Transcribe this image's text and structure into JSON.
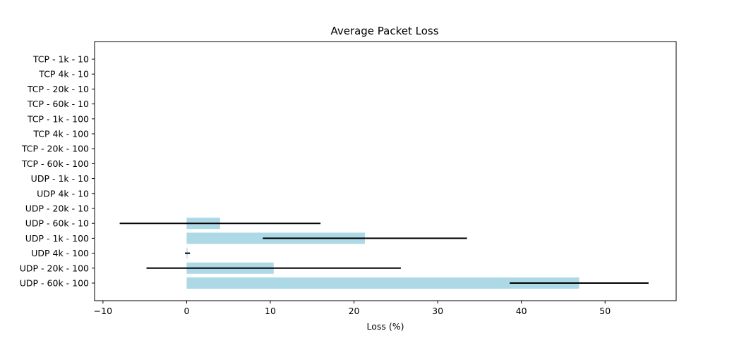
{
  "chart_data": {
    "type": "bar",
    "orientation": "horizontal",
    "title": "Average Packet Loss",
    "xlabel": "Loss (%)",
    "ylabel": "",
    "xlim": [
      -11,
      58.5
    ],
    "xticks": [
      -10,
      0,
      10,
      20,
      30,
      40,
      50
    ],
    "grid": false,
    "bar_color": "#add8e6",
    "error_color": "#000000",
    "categories": [
      "TCP - 1k - 10",
      "TCP 4k - 10",
      "TCP - 20k - 10",
      "TCP - 60k - 10",
      "TCP - 1k - 100",
      "TCP 4k - 100",
      "TCP - 20k - 100",
      "TCP - 60k - 100",
      "UDP - 1k - 10",
      "UDP 4k - 10",
      "UDP - 20k - 10",
      "UDP - 60k - 10",
      "UDP - 1k - 100",
      "UDP 4k - 100",
      "UDP - 20k - 100",
      "UDP - 60k - 100"
    ],
    "values": [
      0,
      0,
      0,
      0,
      0,
      0,
      0,
      0,
      0,
      0,
      0,
      4.0,
      21.3,
      0.1,
      10.4,
      46.9
    ],
    "error_low": [
      null,
      null,
      null,
      null,
      null,
      null,
      null,
      null,
      null,
      null,
      null,
      -8.0,
      9.1,
      -0.2,
      -4.8,
      38.6
    ],
    "error_high": [
      null,
      null,
      null,
      null,
      null,
      null,
      null,
      null,
      null,
      null,
      null,
      16.0,
      33.5,
      0.4,
      25.6,
      55.2
    ]
  }
}
